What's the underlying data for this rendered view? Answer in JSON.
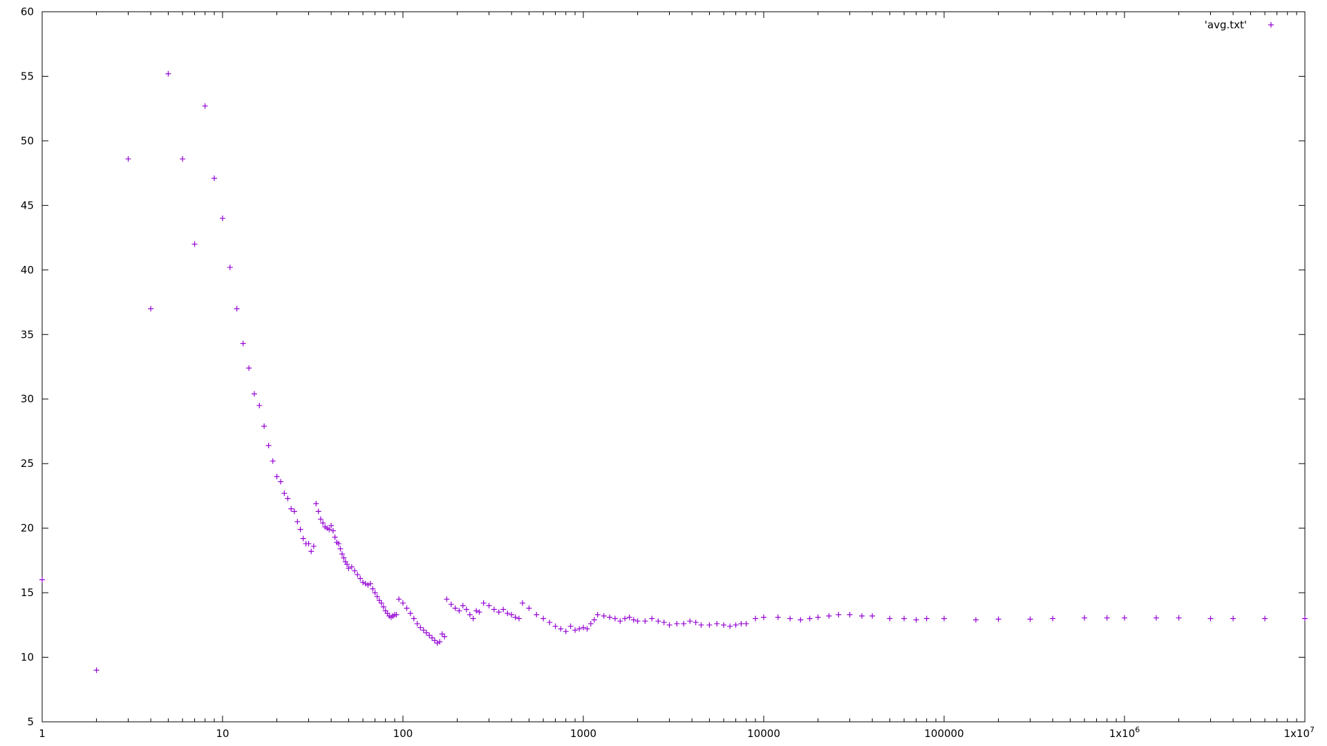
{
  "chart_data": {
    "type": "scatter",
    "title": "",
    "xlabel": "",
    "ylabel": "",
    "xscale": "log",
    "xlim": [
      1,
      10000000
    ],
    "ylim": [
      5,
      60
    ],
    "grid": false,
    "legend_position": "top-right",
    "marker": "+",
    "color": "#9400d3",
    "x_ticks": [
      {
        "value": 1,
        "label": "1"
      },
      {
        "value": 10,
        "label": "10"
      },
      {
        "value": 100,
        "label": "100"
      },
      {
        "value": 1000,
        "label": "1000"
      },
      {
        "value": 10000,
        "label": "10000"
      },
      {
        "value": 100000,
        "label": "100000"
      },
      {
        "value": 1000000,
        "label": "1x10",
        "sup": "6"
      },
      {
        "value": 10000000,
        "label": "1x10",
        "sup": "7"
      }
    ],
    "y_ticks": [
      5,
      10,
      15,
      20,
      25,
      30,
      35,
      40,
      45,
      50,
      55,
      60
    ],
    "series": [
      {
        "name": "'avg.txt'",
        "points": [
          [
            1,
            16
          ],
          [
            2,
            9
          ],
          [
            3,
            48.6
          ],
          [
            4,
            37
          ],
          [
            5,
            55.2
          ],
          [
            6,
            48.6
          ],
          [
            7,
            42
          ],
          [
            8,
            52.7
          ],
          [
            9,
            47.1
          ],
          [
            10,
            44
          ],
          [
            11,
            40.2
          ],
          [
            12,
            37
          ],
          [
            13,
            34.3
          ],
          [
            14,
            32.4
          ],
          [
            15,
            30.4
          ],
          [
            16,
            29.5
          ],
          [
            17,
            27.9
          ],
          [
            18,
            26.4
          ],
          [
            19,
            25.2
          ],
          [
            20,
            24
          ],
          [
            21,
            23.6
          ],
          [
            22,
            22.7
          ],
          [
            23,
            22.3
          ],
          [
            24,
            21.5
          ],
          [
            25,
            21.3
          ],
          [
            26,
            20.5
          ],
          [
            27,
            19.9
          ],
          [
            28,
            19.2
          ],
          [
            29,
            18.8
          ],
          [
            30,
            18.8
          ],
          [
            31,
            18.2
          ],
          [
            32,
            18.6
          ],
          [
            33,
            21.9
          ],
          [
            34,
            21.3
          ],
          [
            35,
            20.7
          ],
          [
            36,
            20.4
          ],
          [
            37,
            20.1
          ],
          [
            38,
            20
          ],
          [
            39,
            19.9
          ],
          [
            40,
            20.2
          ],
          [
            41,
            19.8
          ],
          [
            42,
            19.3
          ],
          [
            43,
            18.9
          ],
          [
            44,
            18.8
          ],
          [
            45,
            18.4
          ],
          [
            46,
            18
          ],
          [
            47,
            17.7
          ],
          [
            48,
            17.4
          ],
          [
            49,
            17.2
          ],
          [
            50,
            16.9
          ],
          [
            52,
            17
          ],
          [
            54,
            16.7
          ],
          [
            56,
            16.4
          ],
          [
            58,
            16.1
          ],
          [
            60,
            15.8
          ],
          [
            62,
            15.7
          ],
          [
            64,
            15.6
          ],
          [
            66,
            15.7
          ],
          [
            68,
            15.3
          ],
          [
            70,
            15
          ],
          [
            72,
            14.7
          ],
          [
            74,
            14.4
          ],
          [
            76,
            14.2
          ],
          [
            78,
            13.9
          ],
          [
            80,
            13.6
          ],
          [
            82,
            13.4
          ],
          [
            84,
            13.2
          ],
          [
            86,
            13.1
          ],
          [
            88,
            13.2
          ],
          [
            90,
            13.3
          ],
          [
            92,
            13.3
          ],
          [
            95,
            14.5
          ],
          [
            100,
            14.2
          ],
          [
            105,
            13.8
          ],
          [
            110,
            13.4
          ],
          [
            115,
            13
          ],
          [
            120,
            12.6
          ],
          [
            125,
            12.3
          ],
          [
            130,
            12.1
          ],
          [
            135,
            11.9
          ],
          [
            140,
            11.7
          ],
          [
            145,
            11.5
          ],
          [
            150,
            11.3
          ],
          [
            155,
            11.1
          ],
          [
            160,
            11.2
          ],
          [
            165,
            11.8
          ],
          [
            170,
            11.6
          ],
          [
            175,
            14.5
          ],
          [
            185,
            14.1
          ],
          [
            195,
            13.8
          ],
          [
            205,
            13.6
          ],
          [
            215,
            14
          ],
          [
            225,
            13.7
          ],
          [
            235,
            13.3
          ],
          [
            245,
            13
          ],
          [
            255,
            13.6
          ],
          [
            265,
            13.5
          ],
          [
            280,
            14.2
          ],
          [
            300,
            14
          ],
          [
            320,
            13.7
          ],
          [
            340,
            13.5
          ],
          [
            360,
            13.7
          ],
          [
            380,
            13.4
          ],
          [
            400,
            13.3
          ],
          [
            420,
            13.1
          ],
          [
            440,
            13
          ],
          [
            460,
            14.2
          ],
          [
            500,
            13.8
          ],
          [
            550,
            13.3
          ],
          [
            600,
            13
          ],
          [
            650,
            12.7
          ],
          [
            700,
            12.4
          ],
          [
            750,
            12.2
          ],
          [
            800,
            12
          ],
          [
            850,
            12.4
          ],
          [
            900,
            12.1
          ],
          [
            950,
            12.2
          ],
          [
            1000,
            12.3
          ],
          [
            1050,
            12.2
          ],
          [
            1100,
            12.6
          ],
          [
            1150,
            12.9
          ],
          [
            1200,
            13.3
          ],
          [
            1300,
            13.2
          ],
          [
            1400,
            13.1
          ],
          [
            1500,
            13
          ],
          [
            1600,
            12.8
          ],
          [
            1700,
            13
          ],
          [
            1800,
            13.1
          ],
          [
            1900,
            12.9
          ],
          [
            2000,
            12.8
          ],
          [
            2200,
            12.8
          ],
          [
            2400,
            13
          ],
          [
            2600,
            12.8
          ],
          [
            2800,
            12.7
          ],
          [
            3000,
            12.5
          ],
          [
            3300,
            12.6
          ],
          [
            3600,
            12.6
          ],
          [
            3900,
            12.8
          ],
          [
            4200,
            12.7
          ],
          [
            4500,
            12.5
          ],
          [
            5000,
            12.5
          ],
          [
            5500,
            12.6
          ],
          [
            6000,
            12.5
          ],
          [
            6500,
            12.4
          ],
          [
            7000,
            12.5
          ],
          [
            7500,
            12.6
          ],
          [
            8000,
            12.6
          ],
          [
            9000,
            13
          ],
          [
            10000,
            13.1
          ],
          [
            12000,
            13.1
          ],
          [
            14000,
            13
          ],
          [
            16000,
            12.9
          ],
          [
            18000,
            13
          ],
          [
            20000,
            13.1
          ],
          [
            23000,
            13.2
          ],
          [
            26000,
            13.3
          ],
          [
            30000,
            13.3
          ],
          [
            35000,
            13.2
          ],
          [
            40000,
            13.2
          ],
          [
            50000,
            13
          ],
          [
            60000,
            13
          ],
          [
            70000,
            12.9
          ],
          [
            80000,
            13
          ],
          [
            100000,
            13
          ],
          [
            150000,
            12.9
          ],
          [
            200000,
            12.95
          ],
          [
            300000,
            12.95
          ],
          [
            400000,
            13
          ],
          [
            600000,
            13.05
          ],
          [
            800000,
            13.05
          ],
          [
            1000000,
            13.05
          ],
          [
            1500000,
            13.05
          ],
          [
            2000000,
            13.05
          ],
          [
            3000000,
            13
          ],
          [
            4000000,
            13
          ],
          [
            6000000,
            13
          ],
          [
            10000000,
            13
          ]
        ]
      }
    ]
  }
}
